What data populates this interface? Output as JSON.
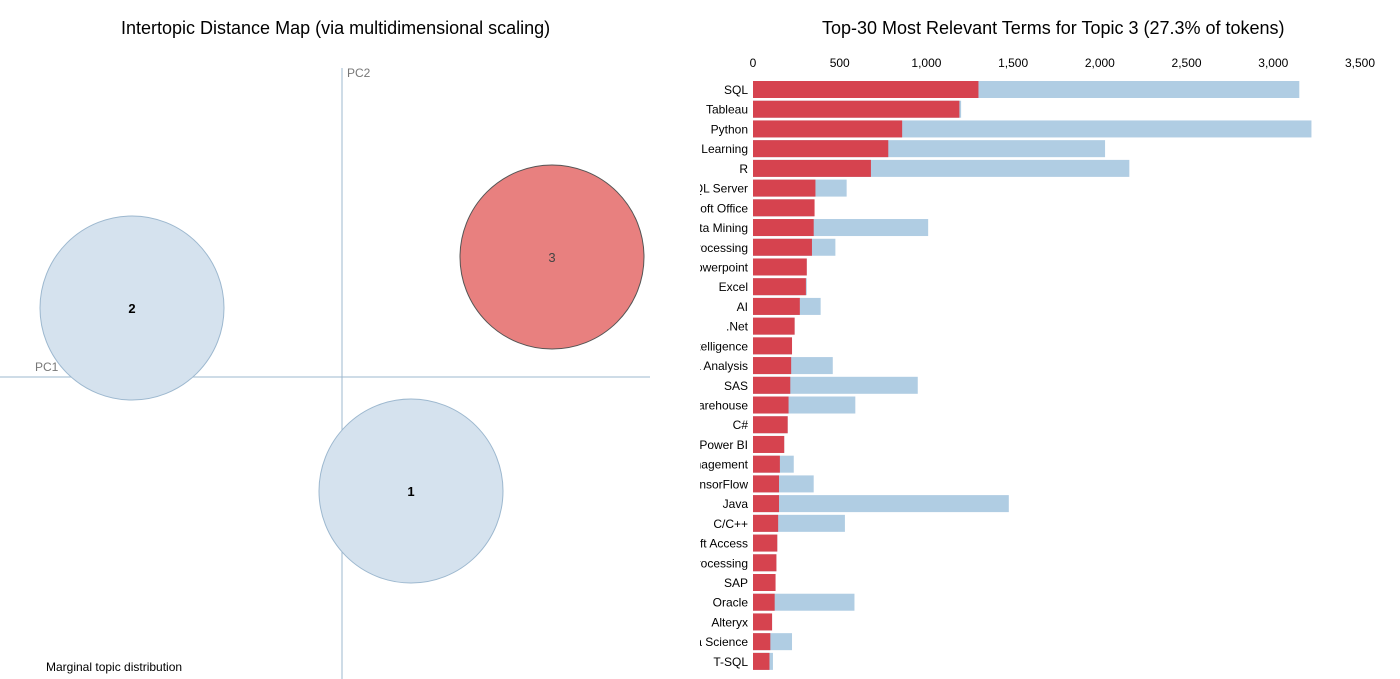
{
  "left_panel": {
    "title": "Intertopic Distance Map (via multidimensional scaling)",
    "footer": "Marginal topic distribution"
  },
  "right_panel": {
    "title": "Top-30 Most Relevant Terms for Topic 3 (27.3% of tokens)"
  },
  "colors": {
    "topic_bar": "#d6434f",
    "overall_bar": "#b0cde3",
    "bubble": "#d5e2ee",
    "bubble_selected": "#e8807f",
    "axis": "#9db8cf"
  },
  "chart_data": [
    {
      "type": "scatter",
      "title": "Intertopic Distance Map (via multidimensional scaling)",
      "xlabel": "PC1",
      "ylabel": "PC2",
      "grid": false,
      "points": [
        {
          "label": "1",
          "x": 0.23,
          "y": -0.38,
          "selected": false
        },
        {
          "label": "2",
          "x": -0.7,
          "y": 0.23,
          "selected": false
        },
        {
          "label": "3",
          "x": 0.7,
          "y": 0.4,
          "selected": true
        }
      ]
    },
    {
      "type": "bar",
      "orientation": "horizontal",
      "title": "Top-30 Most Relevant Terms for Topic 3 (27.3% of tokens)",
      "xlim": [
        0,
        3500
      ],
      "xticks": [
        "0",
        "500",
        "1,000",
        "1,500",
        "2,000",
        "2,500",
        "3,000",
        "3,500"
      ],
      "xtick_values": [
        0,
        500,
        1000,
        1500,
        2000,
        2500,
        3000,
        3500
      ],
      "categories": [
        "SQL",
        "Tableau",
        "Python",
        "Machine Learning",
        "R",
        "Microsoft SQL Server",
        "Microsoft Office",
        "Data Mining",
        "Natural Language Processing",
        "Microsoft Powerpoint",
        "Excel",
        "AI",
        ".Net",
        "Business Intelligence",
        "Data Analysis",
        "SAS",
        "Data Warehouse",
        "C#",
        "Power BI",
        "Project Management",
        "TensorFlow",
        "Java",
        "C/C++",
        "Microsoft Access",
        "Image Processing",
        "SAP",
        "Oracle",
        "Alteryx",
        "Data Science",
        "T-SQL"
      ],
      "series": [
        {
          "values": [
            3150,
            1200,
            3220,
            2030,
            2170,
            540,
            350,
            1010,
            475,
            310,
            310,
            390,
            240,
            225,
            460,
            950,
            590,
            200,
            180,
            235,
            350,
            1475,
            530,
            140,
            135,
            130,
            585,
            110,
            225,
            115
          ]
        },
        {
          "values": [
            1300,
            1190,
            860,
            780,
            680,
            360,
            355,
            350,
            340,
            310,
            305,
            270,
            240,
            225,
            220,
            215,
            205,
            200,
            180,
            155,
            150,
            150,
            145,
            140,
            135,
            130,
            125,
            110,
            100,
            95
          ]
        }
      ]
    }
  ]
}
